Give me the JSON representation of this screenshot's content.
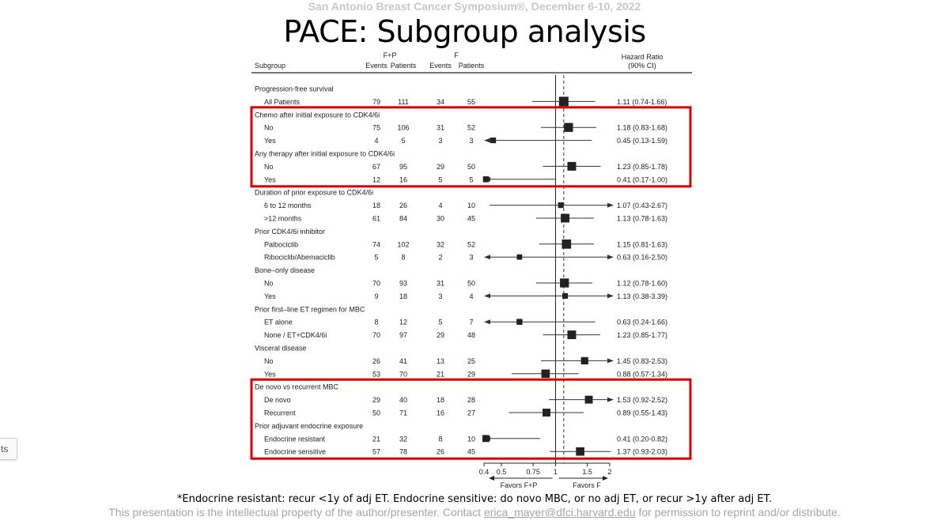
{
  "slide": {
    "conference": "San Antonio Breast Cancer Symposium®, December 6-10, 2022",
    "title": "PACE: Subgroup analysis",
    "footnote": "*Endocrine resistant: recur <1y of adj ET. Endocrine sensitive: do novo MBC, or no adj ET, or recur >1y after adj ET.",
    "copyright_before": "This presentation is the intellectual property of the author/presenter. Contact ",
    "copyright_email": "erica_mayer@dfci.harvard.edu",
    "copyright_after": " for permission to reprint and/or distribute.",
    "side_tab_label": "ts"
  },
  "highlight_color": "#e00000",
  "chart_data": {
    "type": "forest",
    "headers": {
      "subgroup": "Subgroup",
      "fp_arm": "F+P",
      "f_arm": "F",
      "events": "Events",
      "patients": "Patients",
      "hr_line1": "Hazard Ratio",
      "hr_line2": "(90% CI)"
    },
    "x_axis": {
      "scale": "log",
      "ticks": [
        0.4,
        0.5,
        0.75,
        1,
        1.5,
        2
      ],
      "tick_labels": [
        "0.4",
        "0.5",
        "0.75",
        "1",
        "1.5",
        "2"
      ],
      "reference": 1.0,
      "favors_left": "Favors F+P",
      "favors_right": "Favors F"
    },
    "rows": [
      {
        "kind": "section",
        "label": "Progression-free survival"
      },
      {
        "kind": "data",
        "label": "All Patients",
        "fp_events": "79",
        "fp_patients": "111",
        "f_events": "34",
        "f_patients": "55",
        "hr": 1.11,
        "lo": 0.74,
        "hi": 1.66,
        "hr_text": "1.11 (0.74-1.66)",
        "weight": 1.0
      },
      {
        "kind": "section",
        "label": "Chemo after initial exposure to CDK4/6i"
      },
      {
        "kind": "data",
        "label": "No",
        "fp_events": "75",
        "fp_patients": "106",
        "f_events": "31",
        "f_patients": "52",
        "hr": 1.18,
        "lo": 0.83,
        "hi": 1.68,
        "hr_text": "1.18 (0.83-1.68)",
        "weight": 0.9
      },
      {
        "kind": "data",
        "label": "Yes",
        "fp_events": "4",
        "fp_patients": "5",
        "f_events": "3",
        "f_patients": "3",
        "hr": 0.45,
        "lo": 0.13,
        "hi": 1.59,
        "hr_text": "0.45 (0.13-1.59)",
        "weight": 0.3
      },
      {
        "kind": "section",
        "label": "Any therapy after initial exposure to CDK4/6i"
      },
      {
        "kind": "data",
        "label": "No",
        "fp_events": "67",
        "fp_patients": "95",
        "f_events": "29",
        "f_patients": "50",
        "hr": 1.23,
        "lo": 0.85,
        "hi": 1.78,
        "hr_text": "1.23 (0.85-1.78)",
        "weight": 0.85
      },
      {
        "kind": "data",
        "label": "Yes",
        "fp_events": "12",
        "fp_patients": "16",
        "f_events": "5",
        "f_patients": "5",
        "hr": 0.41,
        "lo": 0.17,
        "hi": 1.0,
        "hr_text": "0.41 (0.17-1.00)",
        "weight": 0.35
      },
      {
        "kind": "section",
        "label": "Duration of prior exposure to CDK4/6i"
      },
      {
        "kind": "data",
        "label": "6 to 12 months",
        "fp_events": "18",
        "fp_patients": "26",
        "f_events": "4",
        "f_patients": "10",
        "hr": 1.07,
        "lo": 0.43,
        "hi": 2.67,
        "hr_text": "1.07 (0.43-2.67)",
        "weight": 0.3
      },
      {
        "kind": "data",
        "label": ">12 months",
        "fp_events": "61",
        "fp_patients": "84",
        "f_events": "30",
        "f_patients": "45",
        "hr": 1.13,
        "lo": 0.78,
        "hi": 1.63,
        "hr_text": "1.13 (0.78-1.63)",
        "weight": 0.85
      },
      {
        "kind": "section",
        "label": "Prior CDK4/6i inhibitor"
      },
      {
        "kind": "data",
        "label": "Palbociclib",
        "fp_events": "74",
        "fp_patients": "102",
        "f_events": "32",
        "f_patients": "52",
        "hr": 1.15,
        "lo": 0.81,
        "hi": 1.63,
        "hr_text": "1.15 (0.81-1.63)",
        "weight": 0.95
      },
      {
        "kind": "data",
        "label": "Ribociclib/Abemaciclib",
        "fp_events": "5",
        "fp_patients": "8",
        "f_events": "2",
        "f_patients": "3",
        "hr": 0.63,
        "lo": 0.16,
        "hi": 2.5,
        "hr_text": "0.63 (0.16-2.50)",
        "weight": 0.25
      },
      {
        "kind": "section",
        "label": "Bone–only disease"
      },
      {
        "kind": "data",
        "label": "No",
        "fp_events": "70",
        "fp_patients": "93",
        "f_events": "31",
        "f_patients": "50",
        "hr": 1.12,
        "lo": 0.78,
        "hi": 1.6,
        "hr_text": "1.12 (0.78-1.60)",
        "weight": 0.9
      },
      {
        "kind": "data",
        "label": "Yes",
        "fp_events": "9",
        "fp_patients": "18",
        "f_events": "3",
        "f_patients": "4",
        "hr": 1.13,
        "lo": 0.38,
        "hi": 3.39,
        "hr_text": "1.13 (0.38-3.39)",
        "weight": 0.3
      },
      {
        "kind": "section",
        "label": "Prior first–line ET regimen for MBC"
      },
      {
        "kind": "data",
        "label": "ET alone",
        "fp_events": "8",
        "fp_patients": "12",
        "f_events": "5",
        "f_patients": "7",
        "hr": 0.63,
        "lo": 0.24,
        "hi": 1.66,
        "hr_text": "0.63 (0.24-1.66)",
        "weight": 0.35
      },
      {
        "kind": "data",
        "label": "None / ET+CDK4/6i",
        "fp_events": "70",
        "fp_patients": "97",
        "f_events": "29",
        "f_patients": "48",
        "hr": 1.23,
        "lo": 0.85,
        "hi": 1.77,
        "hr_text": "1.23 (0.85-1.77)",
        "weight": 0.85
      },
      {
        "kind": "section",
        "label": "Visceral disease"
      },
      {
        "kind": "data",
        "label": "No",
        "fp_events": "26",
        "fp_patients": "41",
        "f_events": "13",
        "f_patients": "25",
        "hr": 1.45,
        "lo": 0.83,
        "hi": 2.53,
        "hr_text": "1.45 (0.83-2.53)",
        "weight": 0.6
      },
      {
        "kind": "data",
        "label": "Yes",
        "fp_events": "53",
        "fp_patients": "70",
        "f_events": "21",
        "f_patients": "29",
        "hr": 0.88,
        "lo": 0.57,
        "hi": 1.34,
        "hr_text": "0.88 (0.57-1.34)",
        "weight": 0.8
      },
      {
        "kind": "section",
        "label": "De novo vs recurrent MBC"
      },
      {
        "kind": "data",
        "label": "De novo",
        "fp_events": "29",
        "fp_patients": "40",
        "f_events": "18",
        "f_patients": "28",
        "hr": 1.53,
        "lo": 0.92,
        "hi": 2.52,
        "hr_text": "1.53 (0.92-2.52)",
        "weight": 0.7
      },
      {
        "kind": "data",
        "label": "Recurrent",
        "fp_events": "50",
        "fp_patients": "71",
        "f_events": "16",
        "f_patients": "27",
        "hr": 0.89,
        "lo": 0.55,
        "hi": 1.43,
        "hr_text": "0.89 (0.55-1.43)",
        "weight": 0.7
      },
      {
        "kind": "section",
        "label": "Prior adjuvant endocrine exposure"
      },
      {
        "kind": "data",
        "label": "Endocrine resistant",
        "fp_events": "21",
        "fp_patients": "32",
        "f_events": "8",
        "f_patients": "10",
        "hr": 0.41,
        "lo": 0.2,
        "hi": 0.82,
        "hr_text": "0.41 (0.20-0.82)",
        "weight": 0.55
      },
      {
        "kind": "data",
        "label": "Endocrine sensitive",
        "fp_events": "57",
        "fp_patients": "78",
        "f_events": "26",
        "f_patients": "45",
        "hr": 1.37,
        "lo": 0.93,
        "hi": 2.03,
        "hr_text": "1.37 (0.93-2.03)",
        "weight": 0.8
      }
    ],
    "highlighted_groups": [
      [
        "Chemo after initial exposure to CDK4/6i",
        "Any therapy after initial exposure to CDK4/6i"
      ],
      [
        "De novo vs recurrent MBC",
        "Prior adjuvant endocrine exposure"
      ]
    ]
  }
}
